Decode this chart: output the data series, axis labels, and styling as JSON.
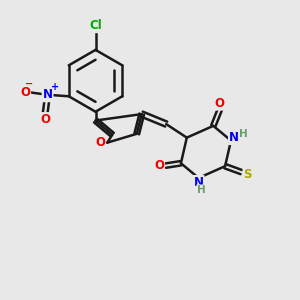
{
  "background_color": "#e8e8e8",
  "bond_color": "#1a1a1a",
  "atom_colors": {
    "C": "#1a1a1a",
    "H": "#6a9f6a",
    "N": "#0000ee",
    "O": "#ee0000",
    "S": "#aaaa00",
    "Cl": "#00aa00"
  },
  "figsize": [
    3.0,
    3.0
  ],
  "dpi": 100
}
